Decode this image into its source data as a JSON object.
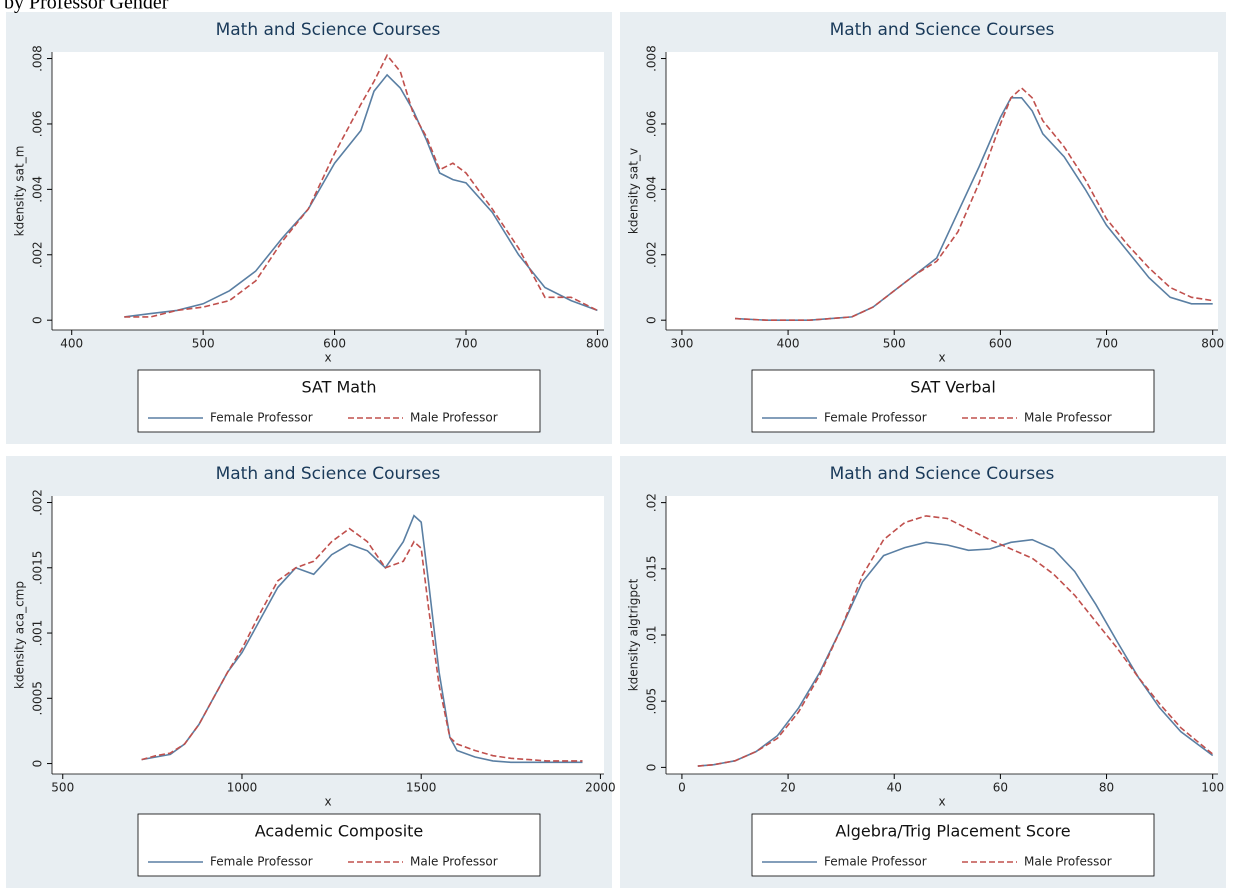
{
  "page_title": "by Professor Gender",
  "chart_data": [
    {
      "type": "line",
      "title": "Math and Science Courses",
      "xlabel": "x",
      "ylabel": "kdensity sat_m",
      "legend_title": "SAT Math",
      "x": [
        440,
        460,
        480,
        500,
        520,
        540,
        560,
        580,
        600,
        620,
        630,
        640,
        650,
        660,
        670,
        680,
        690,
        700,
        720,
        740,
        760,
        780,
        800
      ],
      "series": [
        {
          "name": "Female Professor",
          "color": "#5a7fa3",
          "dash": false,
          "values": [
            0.0001,
            0.0002,
            0.0003,
            0.0005,
            0.0009,
            0.0015,
            0.0025,
            0.0034,
            0.0048,
            0.0058,
            0.007,
            0.0075,
            0.0071,
            0.0064,
            0.0055,
            0.0045,
            0.0043,
            0.0042,
            0.0033,
            0.002,
            0.001,
            0.0006,
            0.0003
          ]
        },
        {
          "name": "Male Professor",
          "color": "#c0504d",
          "dash": true,
          "values": [
            0.0001,
            0.0001,
            0.0003,
            0.0004,
            0.0006,
            0.0012,
            0.0024,
            0.0034,
            0.0051,
            0.0066,
            0.0073,
            0.0081,
            0.0076,
            0.0063,
            0.0056,
            0.0046,
            0.0048,
            0.0045,
            0.0034,
            0.0022,
            0.0007,
            0.0007,
            0.0003
          ]
        }
      ],
      "xlim": [
        385,
        805
      ],
      "ylim": [
        -0.0003,
        0.0082
      ],
      "xticks": [
        400,
        500,
        600,
        700,
        800
      ],
      "yticks": [
        0,
        {
          "value": 0.002,
          "label": ".002"
        },
        {
          "value": 0.004,
          "label": ".004"
        },
        {
          "value": 0.006,
          "label": ".006"
        },
        {
          "value": 0.008,
          "label": ".008"
        }
      ]
    },
    {
      "type": "line",
      "title": "Math and Science Courses",
      "xlabel": "x",
      "ylabel": "kdensity sat_v",
      "legend_title": "SAT Verbal",
      "x": [
        350,
        380,
        400,
        420,
        440,
        460,
        480,
        500,
        520,
        540,
        560,
        580,
        600,
        610,
        620,
        630,
        640,
        660,
        680,
        700,
        720,
        740,
        760,
        780,
        800
      ],
      "series": [
        {
          "name": "Female Professor",
          "color": "#5a7fa3",
          "dash": false,
          "values": [
            5e-05,
            0,
            0,
            0,
            5e-05,
            0.0001,
            0.0004,
            0.0009,
            0.0014,
            0.0019,
            0.0033,
            0.0047,
            0.0062,
            0.0068,
            0.0068,
            0.0064,
            0.0057,
            0.005,
            0.004,
            0.0029,
            0.0021,
            0.0013,
            0.0007,
            0.0005,
            0.0005
          ]
        },
        {
          "name": "Male Professor",
          "color": "#c0504d",
          "dash": true,
          "values": [
            5e-05,
            0,
            0,
            0,
            5e-05,
            0.0001,
            0.0004,
            0.0009,
            0.0014,
            0.0018,
            0.0027,
            0.0042,
            0.006,
            0.0068,
            0.0071,
            0.0068,
            0.0061,
            0.0053,
            0.0043,
            0.0031,
            0.0023,
            0.0016,
            0.001,
            0.0007,
            0.0006
          ]
        }
      ],
      "xlim": [
        285,
        805
      ],
      "ylim": [
        -0.0003,
        0.0082
      ],
      "xticks": [
        300,
        400,
        500,
        600,
        700,
        800
      ],
      "yticks": [
        0,
        {
          "value": 0.002,
          "label": ".002"
        },
        {
          "value": 0.004,
          "label": ".004"
        },
        {
          "value": 0.006,
          "label": ".006"
        },
        {
          "value": 0.008,
          "label": ".008"
        }
      ]
    },
    {
      "type": "line",
      "title": "Math and Science Courses",
      "xlabel": "x",
      "ylabel": "kdensity aca_cmp",
      "legend_title": "Academic Composite",
      "x": [
        720,
        760,
        800,
        840,
        880,
        920,
        960,
        1000,
        1050,
        1100,
        1150,
        1200,
        1250,
        1300,
        1350,
        1400,
        1450,
        1480,
        1500,
        1520,
        1550,
        1580,
        1600,
        1650,
        1700,
        1750,
        1800,
        1850,
        1900,
        1950
      ],
      "series": [
        {
          "name": "Female Professor",
          "color": "#5a7fa3",
          "dash": false,
          "values": [
            3e-05,
            5e-05,
            7e-05,
            0.00015,
            0.0003,
            0.0005,
            0.0007,
            0.00085,
            0.0011,
            0.00135,
            0.0015,
            0.00145,
            0.0016,
            0.00168,
            0.00163,
            0.0015,
            0.0017,
            0.0019,
            0.00185,
            0.0014,
            0.0007,
            0.0002,
            0.0001,
            5e-05,
            2e-05,
            1e-05,
            1e-05,
            1e-05,
            1e-05,
            1e-05
          ]
        },
        {
          "name": "Male Professor",
          "color": "#c0504d",
          "dash": true,
          "values": [
            3e-05,
            6e-05,
            8e-05,
            0.00015,
            0.0003,
            0.0005,
            0.0007,
            0.00088,
            0.00115,
            0.0014,
            0.0015,
            0.00155,
            0.0017,
            0.0018,
            0.0017,
            0.0015,
            0.00155,
            0.0017,
            0.00165,
            0.0012,
            0.0006,
            0.0002,
            0.00015,
            0.0001,
            6e-05,
            4e-05,
            3e-05,
            2e-05,
            2e-05,
            2e-05
          ]
        }
      ],
      "xlim": [
        470,
        2010
      ],
      "ylim": [
        -8e-05,
        0.00205
      ],
      "xticks": [
        500,
        1000,
        1500,
        2000
      ],
      "yticks": [
        0,
        {
          "value": 0.0005,
          "label": ".0005"
        },
        {
          "value": 0.001,
          "label": ".001"
        },
        {
          "value": 0.0015,
          "label": ".0015"
        },
        {
          "value": 0.002,
          "label": ".002"
        }
      ]
    },
    {
      "type": "line",
      "title": "Math and Science Courses",
      "xlabel": "x",
      "ylabel": "kdensity algtrigpct",
      "legend_title": "Algebra/Trig Placement Score",
      "x": [
        3,
        6,
        10,
        14,
        18,
        22,
        26,
        30,
        34,
        38,
        42,
        46,
        50,
        54,
        58,
        62,
        66,
        70,
        74,
        78,
        82,
        86,
        90,
        94,
        100
      ],
      "series": [
        {
          "name": "Female Professor",
          "color": "#5a7fa3",
          "dash": false,
          "values": [
            0.0001,
            0.0002,
            0.0005,
            0.0012,
            0.0024,
            0.0045,
            0.0072,
            0.0105,
            0.014,
            0.016,
            0.0166,
            0.017,
            0.0168,
            0.0164,
            0.0165,
            0.017,
            0.0172,
            0.0165,
            0.0148,
            0.0123,
            0.0095,
            0.0068,
            0.0045,
            0.0027,
            0.0009
          ]
        },
        {
          "name": "Male Professor",
          "color": "#c0504d",
          "dash": true,
          "values": [
            0.0001,
            0.0002,
            0.0005,
            0.0012,
            0.0022,
            0.0042,
            0.007,
            0.0105,
            0.0145,
            0.0172,
            0.0185,
            0.019,
            0.0188,
            0.018,
            0.0172,
            0.0165,
            0.0158,
            0.0146,
            0.013,
            0.011,
            0.009,
            0.0068,
            0.0048,
            0.003,
            0.001
          ]
        }
      ],
      "xlim": [
        -3,
        101
      ],
      "ylim": [
        -0.0005,
        0.0205
      ],
      "xticks": [
        0,
        20,
        40,
        60,
        80,
        100
      ],
      "yticks": [
        0,
        {
          "value": 0.005,
          "label": ".005"
        },
        {
          "value": 0.01,
          "label": ".01"
        },
        {
          "value": 0.015,
          "label": ".015"
        },
        {
          "value": 0.02,
          "label": ".02"
        }
      ]
    }
  ]
}
